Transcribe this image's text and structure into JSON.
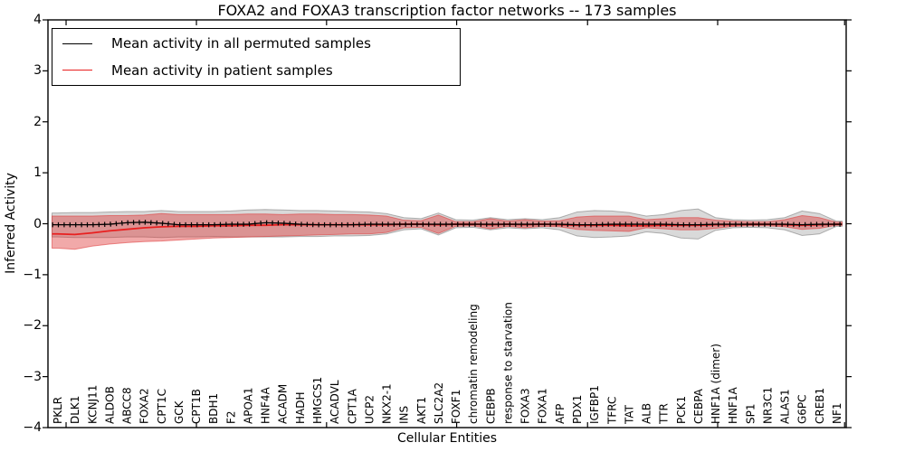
{
  "title": "FOXA2 and FOXA3 transcription factor networks -- 173 samples",
  "legend": {
    "items": [
      {
        "label": "Mean activity in all permuted samples",
        "color": "#000000"
      },
      {
        "label": "Mean activity in patient samples",
        "color": "#e82020"
      }
    ]
  },
  "axes": {
    "ylabel": "Inferred Activity",
    "xlabel": "Cellular Entities",
    "yticks": [
      "4",
      "3",
      "2",
      "1",
      "0",
      "−1",
      "−2",
      "−3",
      "−4"
    ],
    "ylim": [
      -4,
      4
    ]
  },
  "chart_data": {
    "type": "line",
    "title": "FOXA2 and FOXA3 transcription factor networks -- 173 samples",
    "xlabel": "Cellular Entities",
    "ylabel": "Inferred Activity",
    "ylim": [
      -4,
      4
    ],
    "grid": false,
    "legend_position": "upper left",
    "categories": [
      "PKLR",
      "DLK1",
      "KCNJ11",
      "ALDOB",
      "ABCC8",
      "FOXA2",
      "CPT1C",
      "GCK",
      "CPT1B",
      "BDH1",
      "F2",
      "APOA1",
      "HNF4A",
      "ACADM",
      "HADH",
      "HMGCS1",
      "ACADVL",
      "CPT1A",
      "UCP2",
      "NKX2-1",
      "INS",
      "AKT1",
      "SLC2A2",
      "FOXF1",
      "chromatin remodeling",
      "CEBPB",
      "response to starvation",
      "FOXA3",
      "FOXA1",
      "AFP",
      "PDX1",
      "IGFBP1",
      "TFRC",
      "TAT",
      "ALB",
      "TTR",
      "PCK1",
      "CEBPA",
      "HNF1A (dimer)",
      "HNF1A",
      "SP1",
      "NR3C1",
      "ALAS1",
      "G6PC",
      "CREB1",
      "NF1"
    ],
    "series": [
      {
        "name": "Mean activity in all permuted samples",
        "color": "#000000",
        "marker": "plus",
        "values": [
          -0.02,
          -0.02,
          -0.02,
          -0.01,
          0.02,
          0.03,
          0.01,
          -0.02,
          -0.02,
          -0.02,
          -0.01,
          -0.01,
          0.02,
          0.01,
          -0.01,
          -0.02,
          -0.02,
          -0.02,
          -0.01,
          -0.01,
          -0.01,
          -0.01,
          -0.01,
          -0.01,
          -0.01,
          -0.01,
          -0.01,
          -0.01,
          -0.01,
          -0.01,
          -0.02,
          -0.02,
          -0.01,
          -0.01,
          -0.01,
          -0.01,
          -0.02,
          -0.02,
          -0.01,
          -0.01,
          -0.01,
          -0.01,
          -0.01,
          -0.02,
          -0.01,
          -0.01
        ]
      },
      {
        "name": "Mean activity in patient samples",
        "color": "#e82020",
        "marker": "none",
        "values": [
          -0.2,
          -0.21,
          -0.18,
          -0.14,
          -0.11,
          -0.08,
          -0.06,
          -0.05,
          -0.05,
          -0.04,
          -0.04,
          -0.03,
          -0.03,
          -0.02,
          -0.02,
          -0.02,
          -0.02,
          -0.02,
          -0.02,
          -0.02,
          -0.01,
          -0.01,
          -0.02,
          -0.01,
          -0.01,
          -0.02,
          -0.01,
          -0.02,
          -0.01,
          -0.02,
          -0.03,
          -0.03,
          -0.03,
          -0.04,
          -0.04,
          -0.03,
          -0.03,
          -0.03,
          -0.02,
          -0.02,
          -0.01,
          -0.01,
          -0.02,
          -0.03,
          -0.02,
          -0.01
        ]
      }
    ],
    "bands": [
      {
        "name": "permuted samples range",
        "color": "#000000",
        "opacity": 0.15,
        "upper": [
          0.21,
          0.22,
          0.22,
          0.23,
          0.24,
          0.24,
          0.26,
          0.24,
          0.24,
          0.24,
          0.25,
          0.27,
          0.28,
          0.27,
          0.26,
          0.26,
          0.25,
          0.24,
          0.23,
          0.2,
          0.12,
          0.1,
          0.21,
          0.08,
          0.07,
          0.12,
          0.08,
          0.1,
          0.08,
          0.12,
          0.23,
          0.26,
          0.25,
          0.22,
          0.15,
          0.18,
          0.26,
          0.29,
          0.12,
          0.08,
          0.07,
          0.08,
          0.12,
          0.25,
          0.2,
          0.05
        ],
        "lower": [
          -0.26,
          -0.27,
          -0.27,
          -0.27,
          -0.26,
          -0.26,
          -0.27,
          -0.26,
          -0.26,
          -0.25,
          -0.26,
          -0.26,
          -0.26,
          -0.26,
          -0.25,
          -0.25,
          -0.24,
          -0.24,
          -0.23,
          -0.2,
          -0.12,
          -0.1,
          -0.22,
          -0.08,
          -0.07,
          -0.12,
          -0.08,
          -0.1,
          -0.08,
          -0.12,
          -0.24,
          -0.27,
          -0.26,
          -0.24,
          -0.16,
          -0.19,
          -0.28,
          -0.3,
          -0.13,
          -0.08,
          -0.07,
          -0.08,
          -0.12,
          -0.23,
          -0.2,
          -0.05
        ]
      },
      {
        "name": "patient samples range",
        "color": "#dd3333",
        "opacity": 0.42,
        "upper": [
          0.15,
          0.15,
          0.15,
          0.16,
          0.16,
          0.17,
          0.2,
          0.18,
          0.18,
          0.18,
          0.18,
          0.19,
          0.19,
          0.18,
          0.19,
          0.19,
          0.18,
          0.18,
          0.17,
          0.15,
          0.07,
          0.06,
          0.17,
          0.04,
          0.04,
          0.1,
          0.05,
          0.08,
          0.05,
          0.06,
          0.13,
          0.15,
          0.15,
          0.15,
          0.08,
          0.1,
          0.12,
          0.12,
          0.07,
          0.05,
          0.04,
          0.04,
          0.08,
          0.16,
          0.12,
          0.03
        ],
        "lower": [
          -0.48,
          -0.5,
          -0.44,
          -0.4,
          -0.37,
          -0.35,
          -0.34,
          -0.32,
          -0.3,
          -0.28,
          -0.27,
          -0.26,
          -0.25,
          -0.24,
          -0.23,
          -0.22,
          -0.21,
          -0.2,
          -0.2,
          -0.17,
          -0.08,
          -0.07,
          -0.19,
          -0.05,
          -0.04,
          -0.1,
          -0.05,
          -0.08,
          -0.05,
          -0.06,
          -0.11,
          -0.13,
          -0.14,
          -0.15,
          -0.08,
          -0.1,
          -0.12,
          -0.12,
          -0.09,
          -0.05,
          -0.04,
          -0.04,
          -0.06,
          -0.11,
          -0.09,
          -0.03
        ]
      }
    ]
  }
}
